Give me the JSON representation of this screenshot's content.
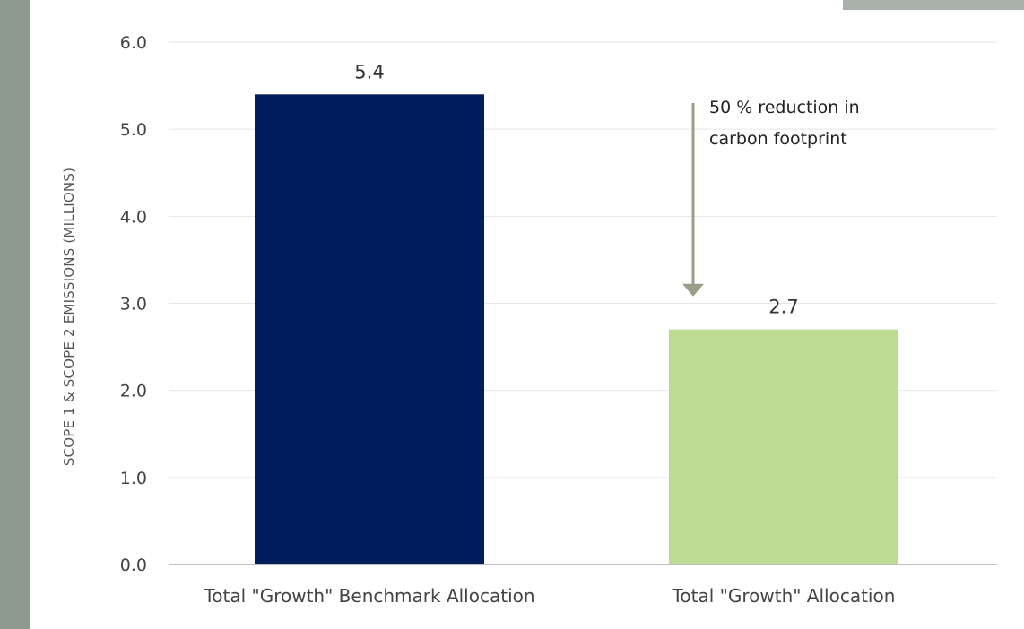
{
  "chart_data": {
    "type": "bar",
    "categories": [
      "Total \"Growth\" Benchmark Allocation",
      "Total \"Growth\" Allocation"
    ],
    "values": [
      5.4,
      2.7
    ],
    "value_labels": [
      "5.4",
      "2.7"
    ],
    "title": "",
    "xlabel": "",
    "ylabel": "SCOPE 1 & SCOPE 2 EMISSIONS (MILLIONS)",
    "ylim": [
      0,
      6
    ],
    "yticks": [
      "0.0",
      "1.0",
      "2.0",
      "3.0",
      "4.0",
      "5.0",
      "6.0"
    ],
    "grid": true,
    "bar_colors": [
      "#001e5c",
      "#bedb94"
    ],
    "annotation": {
      "lines": [
        "50 % reduction in",
        "carbon footprint"
      ],
      "arrow_from": 5.3,
      "arrow_to": 3.1,
      "arrow_color": "#9a9d88"
    }
  }
}
